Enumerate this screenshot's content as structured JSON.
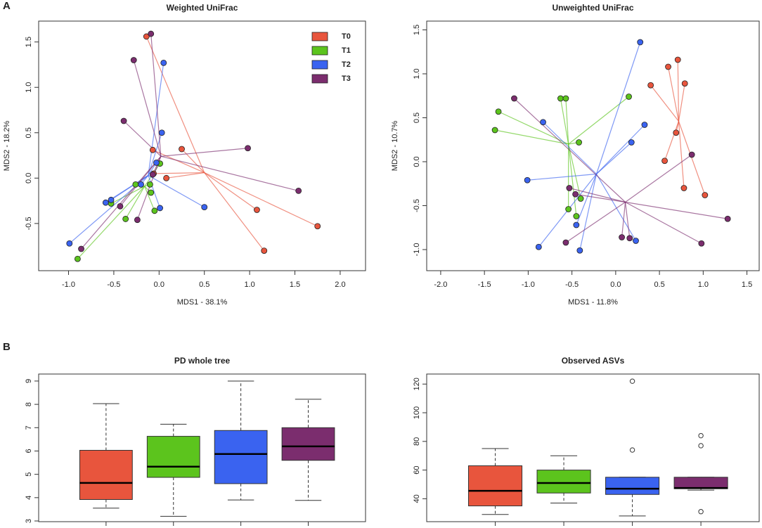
{
  "panel_labels": [
    "A",
    "B"
  ],
  "chart_data": [
    {
      "type": "scatter",
      "title": "Weighted UniFrac",
      "x_label": "MDS1 - 38.1%",
      "y_label": "MDS2 - 18.2%",
      "legend": "top right",
      "xlim": [
        -1.33,
        2.28
      ],
      "ylim": [
        -1.02,
        1.73
      ],
      "xticks": [
        {
          "value": -1.0,
          "label": "-1.0"
        },
        {
          "value": -0.5,
          "label": "-0.5"
        },
        {
          "value": 0.0,
          "label": "0.0"
        },
        {
          "value": 0.5,
          "label": "0.5"
        },
        {
          "value": 1.0,
          "label": "1.0"
        },
        {
          "value": 1.5,
          "label": "1.5"
        },
        {
          "value": 2.0,
          "label": "2.0"
        }
      ],
      "yticks": [
        {
          "value": -0.5,
          "label": "-0.5"
        },
        {
          "value": 0.0,
          "label": "0.0"
        },
        {
          "value": 0.5,
          "label": "0.5"
        },
        {
          "value": 1.0,
          "label": "1.0"
        },
        {
          "value": 1.5,
          "label": "1.5"
        }
      ],
      "series": [
        {
          "name": "T0",
          "color": "#e8553d",
          "centroid": [
            0.5,
            0.06
          ],
          "x": [
            -0.14,
            -0.07,
            0.25,
            0.08,
            -0.06,
            1.08,
            1.16,
            1.75
          ],
          "y": [
            1.56,
            0.31,
            0.32,
            0.0,
            0.05,
            -0.35,
            -0.8,
            -0.53
          ]
        },
        {
          "name": "T1",
          "color": "#5cc41d",
          "centroid": [
            -0.16,
            -0.09
          ],
          "x": [
            0.01,
            -0.1,
            -0.26,
            -0.09,
            -0.05,
            -0.37,
            -0.53,
            -0.9
          ],
          "y": [
            0.16,
            -0.07,
            -0.07,
            -0.16,
            -0.36,
            -0.45,
            -0.28,
            -0.89
          ]
        },
        {
          "name": "T2",
          "color": "#3a63f0",
          "centroid": [
            -0.12,
            0.03
          ],
          "x": [
            0.05,
            0.03,
            -0.03,
            -0.2,
            -0.59,
            -0.53,
            0.01,
            0.5,
            -0.99
          ],
          "y": [
            1.27,
            0.5,
            0.17,
            -0.07,
            -0.27,
            -0.24,
            -0.33,
            -0.32,
            -0.72
          ]
        },
        {
          "name": "T3",
          "color": "#7b2d6e",
          "centroid": [
            0.02,
            0.24
          ],
          "x": [
            -0.09,
            -0.28,
            -0.39,
            -0.07,
            0.98,
            1.54,
            -0.43,
            -0.24,
            -0.86
          ],
          "y": [
            1.59,
            1.3,
            0.63,
            0.04,
            0.33,
            -0.14,
            -0.31,
            -0.46,
            -0.78
          ]
        }
      ]
    },
    {
      "type": "scatter",
      "title": "Unweighted UniFrac",
      "x_label": "MDS1 - 11.8%",
      "y_label": "MDS2 - 10.7%",
      "xlim": [
        -2.16,
        1.64
      ],
      "ylim": [
        -1.24,
        1.6
      ],
      "xticks": [
        {
          "value": -2.0,
          "label": "-2.0"
        },
        {
          "value": -1.5,
          "label": "-1.5"
        },
        {
          "value": -1.0,
          "label": "-1.0"
        },
        {
          "value": -0.5,
          "label": "-0.5"
        },
        {
          "value": 0.0,
          "label": "0.0"
        },
        {
          "value": 0.5,
          "label": "0.5"
        },
        {
          "value": 1.0,
          "label": "1.0"
        },
        {
          "value": 1.5,
          "label": "1.5"
        }
      ],
      "yticks": [
        {
          "value": -1.0,
          "label": "-1.0"
        },
        {
          "value": -0.5,
          "label": "-0.5"
        },
        {
          "value": 0.0,
          "label": "0.0"
        },
        {
          "value": 0.5,
          "label": "0.5"
        },
        {
          "value": 1.0,
          "label": "1.0"
        },
        {
          "value": 1.5,
          "label": "1.5"
        }
      ],
      "series": [
        {
          "name": "T0",
          "color": "#e8553d",
          "centroid": [
            0.72,
            0.46
          ],
          "x": [
            0.71,
            0.6,
            0.79,
            0.4,
            0.69,
            0.56,
            0.78,
            1.02
          ],
          "y": [
            1.16,
            1.08,
            0.89,
            0.87,
            0.33,
            0.01,
            -0.3,
            -0.38
          ]
        },
        {
          "name": "T1",
          "color": "#5cc41d",
          "centroid": [
            -0.54,
            0.2
          ],
          "x": [
            -1.34,
            -1.38,
            -0.63,
            -0.57,
            0.15,
            -0.42,
            -0.4,
            -0.54,
            -0.45
          ],
          "y": [
            0.57,
            0.36,
            0.72,
            0.72,
            0.74,
            0.22,
            -0.42,
            -0.54,
            -0.62
          ]
        },
        {
          "name": "T2",
          "color": "#3a63f0",
          "centroid": [
            -0.22,
            -0.14
          ],
          "x": [
            0.28,
            0.33,
            0.18,
            -0.83,
            -1.01,
            -0.45,
            -0.41,
            -0.88,
            0.23
          ],
          "y": [
            1.36,
            0.42,
            0.22,
            0.45,
            -0.21,
            -0.72,
            -1.01,
            -0.97,
            -0.9
          ]
        },
        {
          "name": "T3",
          "color": "#7b2d6e",
          "centroid": [
            0.11,
            -0.46
          ],
          "x": [
            -1.16,
            -0.53,
            -0.46,
            -0.57,
            0.07,
            0.16,
            0.87,
            1.28,
            0.98
          ],
          "y": [
            0.72,
            -0.3,
            -0.37,
            -0.92,
            -0.86,
            -0.87,
            0.08,
            -0.65,
            -0.93
          ]
        }
      ]
    },
    {
      "type": "box",
      "title": "PD whole tree",
      "ylim": [
        2.97,
        9.3
      ],
      "yticks": [
        3,
        4,
        5,
        6,
        7,
        8,
        9
      ],
      "categories": [
        null,
        null,
        null,
        null
      ],
      "boxes": [
        {
          "color": "#e8553d",
          "min": 3.55,
          "q1": 3.92,
          "median": 4.63,
          "q3": 6.03,
          "max": 8.03,
          "outliers": []
        },
        {
          "color": "#5cc41d",
          "min": 3.2,
          "q1": 4.87,
          "median": 5.33,
          "q3": 6.63,
          "max": 7.15,
          "outliers": []
        },
        {
          "color": "#3a63f0",
          "min": 3.9,
          "q1": 4.6,
          "median": 5.87,
          "q3": 6.88,
          "max": 9.0,
          "outliers": []
        },
        {
          "color": "#7b2d6e",
          "min": 3.88,
          "q1": 5.6,
          "median": 6.2,
          "q3": 7.0,
          "max": 8.22,
          "outliers": []
        }
      ]
    },
    {
      "type": "box",
      "title": "Observed ASVs",
      "ylim": [
        24,
        127
      ],
      "yticks": [
        40,
        60,
        80,
        100,
        120
      ],
      "categories": [
        null,
        null,
        null,
        null
      ],
      "boxes": [
        {
          "color": "#e8553d",
          "min": 29,
          "q1": 35,
          "median": 45.5,
          "q3": 63,
          "max": 75,
          "outliers": []
        },
        {
          "color": "#5cc41d",
          "min": 37,
          "q1": 44,
          "median": 51,
          "q3": 60,
          "max": 70,
          "outliers": []
        },
        {
          "color": "#3a63f0",
          "min": 28,
          "q1": 43,
          "median": 47,
          "q3": 55,
          "max": 55,
          "outliers": [
            122,
            74
          ]
        },
        {
          "color": "#7b2d6e",
          "min": 46,
          "q1": 47,
          "median": 47.5,
          "q3": 55,
          "max": 55,
          "outliers": [
            84,
            77,
            31
          ]
        }
      ]
    }
  ]
}
